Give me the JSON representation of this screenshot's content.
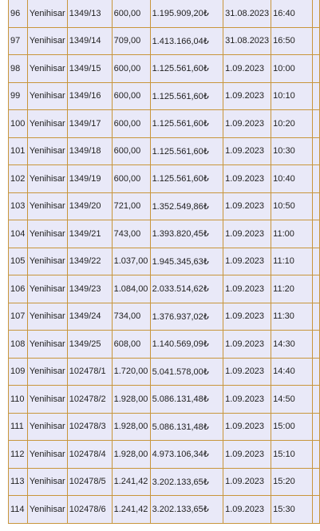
{
  "table": {
    "rows": [
      [
        "96",
        "Yenihisar",
        "1349/13",
        "600,00",
        "1.195.909,20₺",
        "31.08.2023",
        "16:40"
      ],
      [
        "97",
        "Yenihisar",
        "1349/14",
        "709,00",
        "1.413.166,04₺",
        "31.08.2023",
        "16:50"
      ],
      [
        "98",
        "Yenihisar",
        "1349/15",
        "600,00",
        "1.125.561,60₺",
        "1.09.2023",
        "10:00"
      ],
      [
        "99",
        "Yenihisar",
        "1349/16",
        "600,00",
        "1.125.561,60₺",
        "1.09.2023",
        "10:10"
      ],
      [
        "100",
        "Yenihisar",
        "1349/17",
        "600,00",
        "1.125.561,60₺",
        "1.09.2023",
        "10:20"
      ],
      [
        "101",
        "Yenihisar",
        "1349/18",
        "600,00",
        "1.125.561,60₺",
        "1.09.2023",
        "10:30"
      ],
      [
        "102",
        "Yenihisar",
        "1349/19",
        "600,00",
        "1.125.561,60₺",
        "1.09.2023",
        "10:40"
      ],
      [
        "103",
        "Yenihisar",
        "1349/20",
        "721,00",
        "1.352.549,86₺",
        "1.09.2023",
        "10:50"
      ],
      [
        "104",
        "Yenihisar",
        "1349/21",
        "743,00",
        "1.393.820,45₺",
        "1.09.2023",
        "11:00"
      ],
      [
        "105",
        "Yenihisar",
        "1349/22",
        "1.037,00",
        "1.945.345,63₺",
        "1.09.2023",
        "11:10"
      ],
      [
        "106",
        "Yenihisar",
        "1349/23",
        "1.084,00",
        "2.033.514,62₺",
        "1.09.2023",
        "11:20"
      ],
      [
        "107",
        "Yenihisar",
        "1349/24",
        "734,00",
        "1.376.937,02₺",
        "1.09.2023",
        "11:30"
      ],
      [
        "108",
        "Yenihisar",
        "1349/25",
        "608,00",
        "1.140.569,09₺",
        "1.09.2023",
        "14:30"
      ],
      [
        "109",
        "Yenihisar",
        "102478/1",
        "1.720,00",
        "5.041.578,00₺",
        "1.09.2023",
        "14:40"
      ],
      [
        "110",
        "Yenihisar",
        "102478/2",
        "1.928,00",
        "5.086.131,48₺",
        "1.09.2023",
        "14:50"
      ],
      [
        "111",
        "Yenihisar",
        "102478/3",
        "1.928,00",
        "5.086.131,48₺",
        "1.09.2023",
        "15:00"
      ],
      [
        "112",
        "Yenihisar",
        "102478/4",
        "1.928,00",
        "4.973.106,34₺",
        "1.09.2023",
        "15:10"
      ],
      [
        "113",
        "Yenihisar",
        "102478/5",
        "1.241,42",
        "3.202.133,65₺",
        "1.09.2023",
        "15:20"
      ],
      [
        "114",
        "Yenihisar",
        "102478/6",
        "1.241,42",
        "3.202.133,65₺",
        "1.09.2023",
        "15:30"
      ]
    ]
  }
}
